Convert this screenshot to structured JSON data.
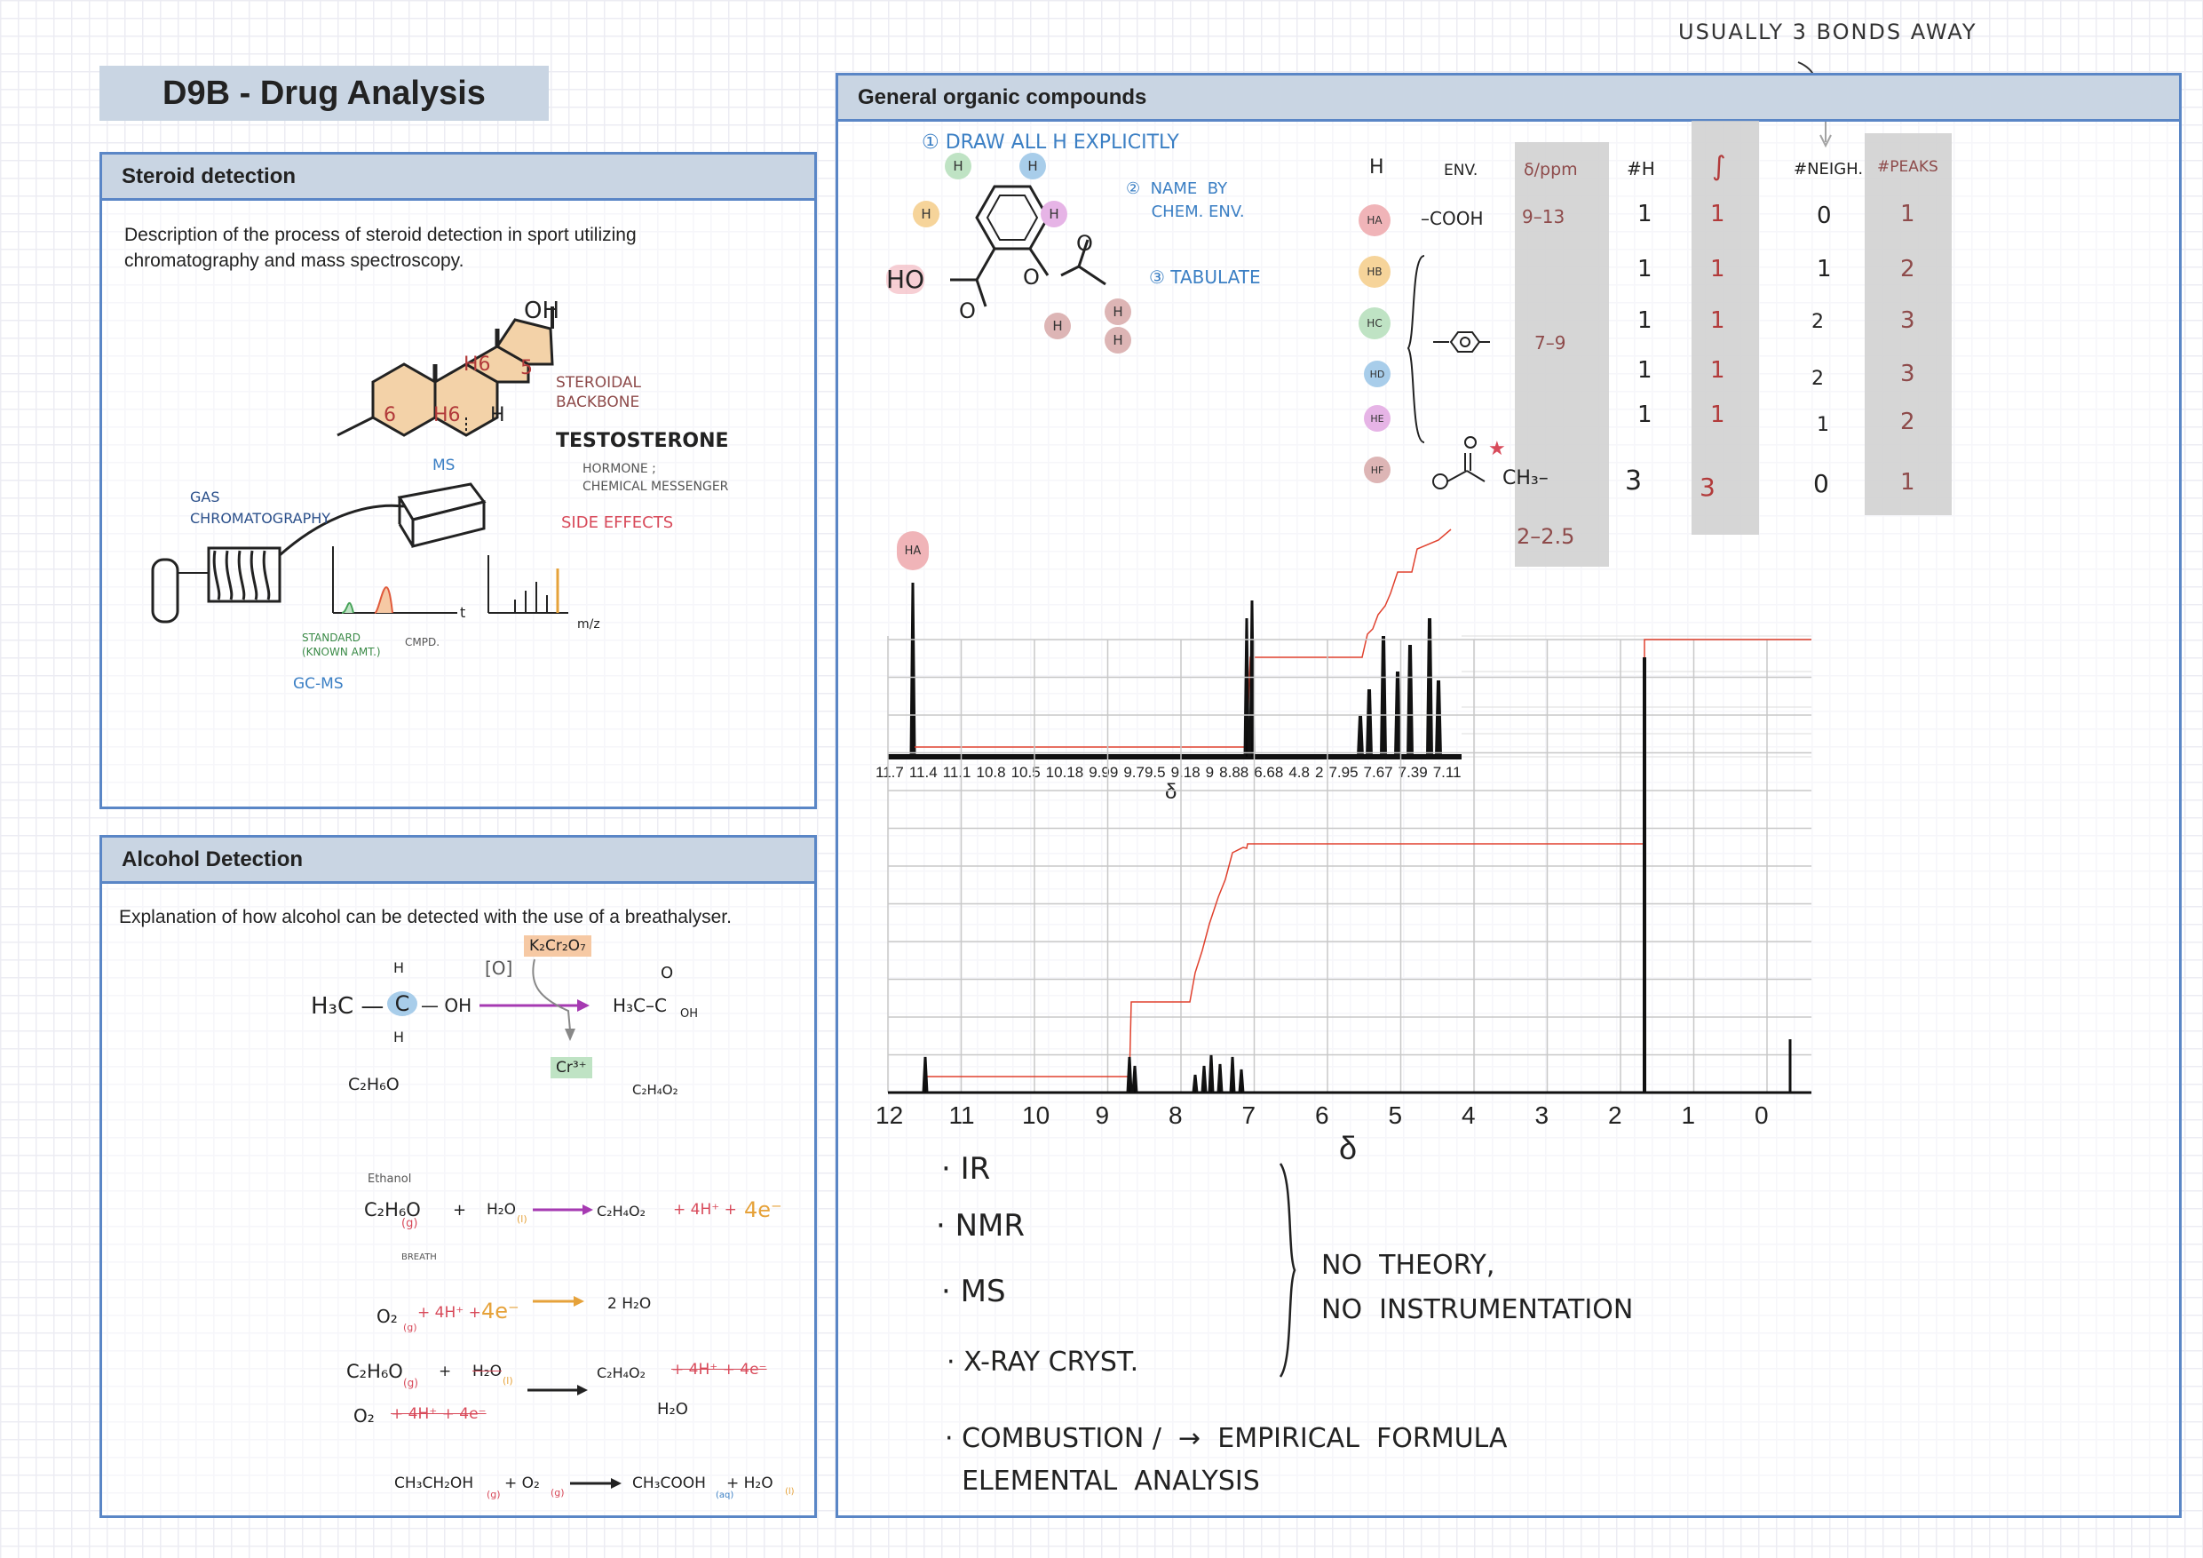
{
  "header": {
    "top_note": "USUALLY 3 BONDS AWAY",
    "title": "D9B - Drug Analysis"
  },
  "steroid": {
    "heading": "Steroid detection",
    "desc": "Description of the process of steroid detection in sport utilizing chromatography and mass spectroscopy.",
    "oh": "OH",
    "ring6a": "6",
    "ring6b": "H6",
    "ring6c": "H6",
    "ring5": "5",
    "h": "H",
    "backbone": "STEROIDAL\nBACKBONE",
    "testosterone": "TESTOSTERONE",
    "hormone": "HORMONE ;\nCHEMICAL MESSENGER",
    "side_effects": "SIDE  EFFECTS",
    "ms": "MS",
    "gas": "GAS\nCHROMATOGRAPHY",
    "standard": "STANDARD\n(KNOWN AMT.)",
    "cmpd": "CMPD.",
    "gcms": "GC-MS",
    "t": "t",
    "mz": "m/z"
  },
  "alcohol": {
    "heading": "Alcohol Detection",
    "desc": "Explanation of how alcohol can be detected with the use of a breathalyser.",
    "ethanol_left": "H₃C —",
    "c": "C",
    "oh": "— OH",
    "h": "H",
    "o": "[O]",
    "dichromate": "K₂Cr₂O₇",
    "acid": "H₃C–C",
    "acid_o": "O",
    "acid_oh": "OH",
    "cr": "Cr³⁺",
    "f_ethanol": "C₂H₆O",
    "f_acid": "C₂H₄O₂",
    "eq_label": "Ethanol",
    "breath": "BREATH",
    "eq1_l": "C₂H₆O",
    "eq1_g": "(g)",
    "eq1_plus": "+",
    "eq1_w": "H₂O",
    "eq1_wl": "(l)",
    "eq1_r": "C₂H₄O₂",
    "eq1_h": "+ 4H⁺ + ",
    "eq1_e": "4e⁻",
    "eq2_l": "O₂",
    "eq2_g": "(g)",
    "eq2_h": "+ 4H⁺ +",
    "eq2_e": "4e⁻",
    "eq2_r": "2 H₂O",
    "eq3a_l": "C₂H₆O",
    "eq3a_g": "(g)",
    "eq3a_plus": "+",
    "eq3a_w": "H₂O",
    "eq3a_wl": "(l)",
    "eq3a_r": "C₂H₄O₂",
    "eq3a_h": "+ 4H⁺ + 4e⁻",
    "eq3b_l": "O₂",
    "eq3b_h": "+ 4H⁺ + 4e⁻",
    "eq3b_r": "H₂O",
    "eq4_l": "CH₃CH₂OH",
    "eq4_g": "(g)",
    "eq4_plus": "+ O₂",
    "eq4_og": "(g)",
    "eq4_r": "CH₃COOH",
    "eq4_aq": "(aq)",
    "eq4_w": "+ H₂O",
    "eq4_wl": "(l)"
  },
  "organic": {
    "heading": "General organic compounds",
    "step1": "① DRAW  ALL  H  EXPLICITLY",
    "step2": "②  NAME  BY\n     CHEM. ENV.",
    "step3": "③  TABULATE",
    "ho": "HO",
    "o": "O",
    "table": {
      "headers": [
        "H",
        "ENV.",
        "δ/ppm",
        "#H",
        "∫",
        "#NEIGH.",
        "#PEAKS"
      ],
      "rows": [
        {
          "h": "HA",
          "env": "–COOH",
          "shift": "9–13",
          "nh": "1",
          "int": "1",
          "neigh": "0",
          "peaks": "1"
        },
        {
          "h": "HB",
          "env": "",
          "shift": "",
          "nh": "1",
          "int": "1",
          "neigh": "1",
          "peaks": "2"
        },
        {
          "h": "HC",
          "env": "",
          "shift": "7–9",
          "nh": "1",
          "int": "1",
          "neigh": "2",
          "peaks": "3"
        },
        {
          "h": "HD",
          "env": "",
          "shift": "",
          "nh": "1",
          "int": "1",
          "neigh": "2",
          "peaks": "3"
        },
        {
          "h": "HE",
          "env": "",
          "shift": "",
          "nh": "1",
          "int": "1",
          "neigh": "1",
          "peaks": "2"
        },
        {
          "h": "HF",
          "env": "CH₃–",
          "shift": "2–2.5",
          "nh": "3",
          "int": "3",
          "neigh": "0",
          "peaks": "1"
        }
      ]
    },
    "ha_label": "HA",
    "zoom_ticks": [
      "11.7",
      "11.4",
      "11.1",
      "10.8",
      "10.5",
      "10.18",
      "9.99",
      "9.79.5",
      "9.18",
      "9",
      "8.88",
      "6.68",
      "4.8",
      "2",
      "7.95",
      "7.67",
      "7.39",
      "7.11"
    ],
    "zoom_xlabel": "δ",
    "main_ticks": [
      "12",
      "11",
      "10",
      "9",
      "8",
      "7",
      "6",
      "5",
      "4",
      "3",
      "2",
      "1",
      "0"
    ],
    "main_xlabel": "δ",
    "techniques": [
      "· IR",
      "· NMR",
      "· MS",
      "· X-RAY  CRYST."
    ],
    "no_theory": "NO  THEORY,\nNO  INSTRUMENTATION",
    "combustion": "· COMBUSTION /  →  EMPIRICAL  FORMULA\n  ELEMENTAL  ANALYSIS"
  },
  "colors": {
    "panel_border": "#5a86c6",
    "panel_head": "#c9d5e3",
    "blue_note": "#3b7fc4",
    "red_note": "#b23a3a",
    "integral": "#e0412e"
  }
}
